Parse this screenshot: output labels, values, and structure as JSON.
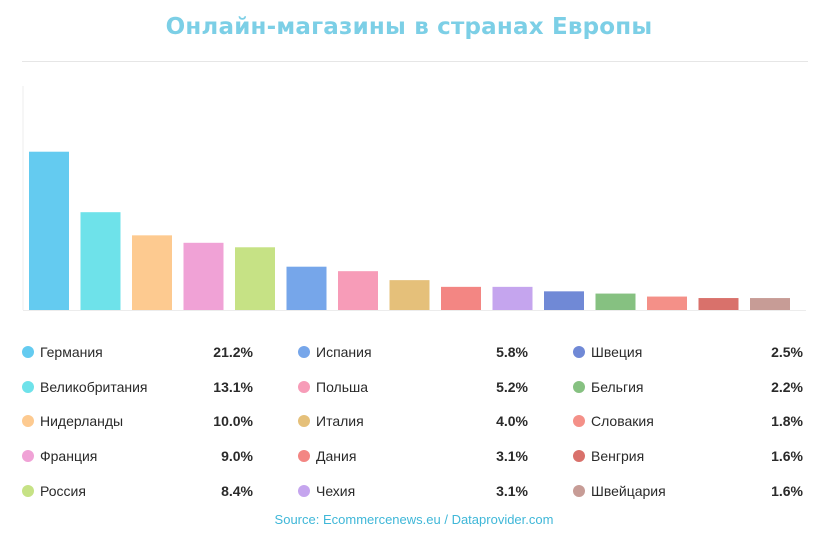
{
  "title": "Онлайн-магазины в странах Европы",
  "source": "Source: Ecommercenews.eu / Dataprovider.com",
  "chart_data": {
    "type": "bar",
    "title": "Онлайн-магазины в странах Европы",
    "categories": [
      "Германия",
      "Великобритания",
      "Нидерланды",
      "Франция",
      "Россия",
      "Испания",
      "Польша",
      "Италия",
      "Дания",
      "Чехия",
      "Швеция",
      "Бельгия",
      "Словакия",
      "Венгрия",
      "Швейцария"
    ],
    "values": [
      21.2,
      13.1,
      10.0,
      9.0,
      8.4,
      5.8,
      5.2,
      4.0,
      3.1,
      3.1,
      2.5,
      2.2,
      1.8,
      1.6,
      1.6
    ],
    "value_labels": [
      "21.2%",
      "13.1%",
      "10.0%",
      "9.0%",
      "8.4%",
      "5.8%",
      "5.2%",
      "4.0%",
      "3.1%",
      "3.1%",
      "2.5%",
      "2.2%",
      "1.8%",
      "1.6%",
      "1.6%"
    ],
    "colors": [
      "#64cbf0",
      "#6ee2ea",
      "#fdca90",
      "#f0a2d6",
      "#c6e285",
      "#76a6ea",
      "#f79cb8",
      "#e5c07a",
      "#f38683",
      "#c5a5ee",
      "#7089d6",
      "#86c181",
      "#f49088",
      "#d9716b",
      "#c79c96"
    ],
    "unit": "%",
    "ylim": [
      0,
      30
    ],
    "grid": false,
    "legend": "bottom",
    "xlabel": "",
    "ylabel": ""
  }
}
